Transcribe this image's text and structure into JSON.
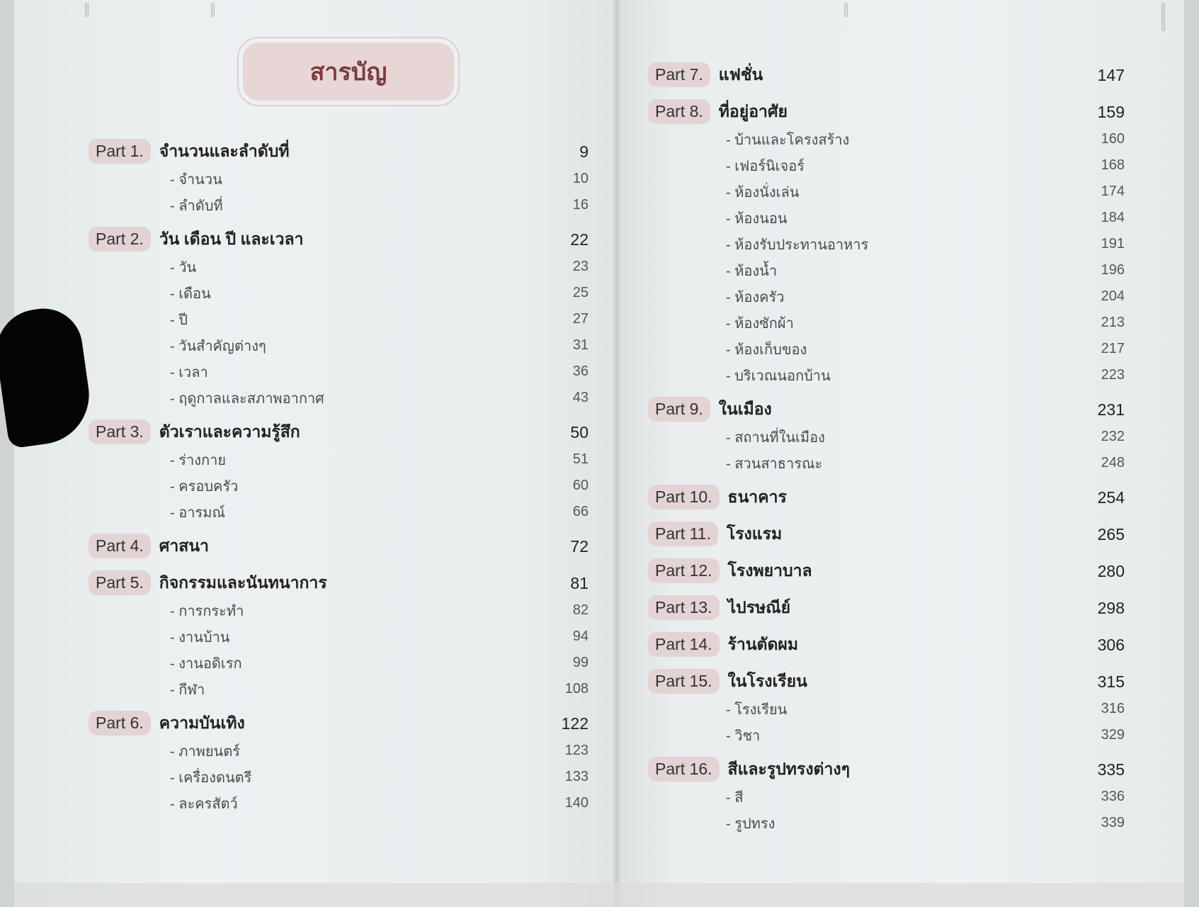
{
  "title": "สารบัญ",
  "colors": {
    "accent_pill": "#e3d3d4",
    "title_text": "#7b3a3e",
    "page_bg": "#edf1f2"
  },
  "left_toc": [
    {
      "label": "Part 1.",
      "title": "จำนวนและลำดับที่",
      "page": "9",
      "subs": [
        {
          "title": "จำนวน",
          "page": "10"
        },
        {
          "title": "ลำดับที่",
          "page": "16"
        }
      ]
    },
    {
      "label": "Part 2.",
      "title": "วัน เดือน ปี และเวลา",
      "page": "22",
      "subs": [
        {
          "title": "วัน",
          "page": "23"
        },
        {
          "title": "เดือน",
          "page": "25"
        },
        {
          "title": "ปี",
          "page": "27"
        },
        {
          "title": "วันสำคัญต่างๆ",
          "page": "31"
        },
        {
          "title": "เวลา",
          "page": "36"
        },
        {
          "title": "ฤดูกาลและสภาพอากาศ",
          "page": "43"
        }
      ]
    },
    {
      "label": "Part 3.",
      "title": "ตัวเราและความรู้สึก",
      "page": "50",
      "subs": [
        {
          "title": "ร่างกาย",
          "page": "51"
        },
        {
          "title": "ครอบครัว",
          "page": "60"
        },
        {
          "title": "อารมณ์",
          "page": "66"
        }
      ]
    },
    {
      "label": "Part 4.",
      "title": "ศาสนา",
      "page": "72",
      "subs": []
    },
    {
      "label": "Part 5.",
      "title": "กิจกรรมและนันทนาการ",
      "page": "81",
      "subs": [
        {
          "title": "การกระทำ",
          "page": "82"
        },
        {
          "title": "งานบ้าน",
          "page": "94"
        },
        {
          "title": "งานอดิเรก",
          "page": "99"
        },
        {
          "title": "กีฬา",
          "page": "108"
        }
      ]
    },
    {
      "label": "Part 6.",
      "title": "ความบันเทิง",
      "page": "122",
      "subs": [
        {
          "title": "ภาพยนตร์",
          "page": "123"
        },
        {
          "title": "เครื่องดนตรี",
          "page": "133"
        },
        {
          "title": "ละครสัตว์",
          "page": "140"
        }
      ]
    }
  ],
  "right_toc": [
    {
      "label": "Part 7.",
      "title": "แฟชั่น",
      "page": "147",
      "subs": []
    },
    {
      "label": "Part 8.",
      "title": "ที่อยู่อาศัย",
      "page": "159",
      "subs": [
        {
          "title": "บ้านและโครงสร้าง",
          "page": "160"
        },
        {
          "title": "เฟอร์นิเจอร์",
          "page": "168"
        },
        {
          "title": "ห้องนั่งเล่น",
          "page": "174"
        },
        {
          "title": "ห้องนอน",
          "page": "184"
        },
        {
          "title": "ห้องรับประทานอาหาร",
          "page": "191"
        },
        {
          "title": "ห้องน้ำ",
          "page": "196"
        },
        {
          "title": "ห้องครัว",
          "page": "204"
        },
        {
          "title": "ห้องซักผ้า",
          "page": "213"
        },
        {
          "title": "ห้องเก็บของ",
          "page": "217"
        },
        {
          "title": "บริเวณนอกบ้าน",
          "page": "223"
        }
      ]
    },
    {
      "label": "Part 9.",
      "title": "ในเมือง",
      "page": "231",
      "subs": [
        {
          "title": "สถานที่ในเมือง",
          "page": "232"
        },
        {
          "title": "สวนสาธารณะ",
          "page": "248"
        }
      ]
    },
    {
      "label": "Part 10.",
      "title": "ธนาคาร",
      "page": "254",
      "subs": []
    },
    {
      "label": "Part 11.",
      "title": "โรงแรม",
      "page": "265",
      "subs": []
    },
    {
      "label": "Part 12.",
      "title": "โรงพยาบาล",
      "page": "280",
      "subs": []
    },
    {
      "label": "Part 13.",
      "title": "ไปรษณีย์",
      "page": "298",
      "subs": []
    },
    {
      "label": "Part 14.",
      "title": "ร้านตัดผม",
      "page": "306",
      "subs": []
    },
    {
      "label": "Part 15.",
      "title": "ในโรงเรียน",
      "page": "315",
      "subs": [
        {
          "title": "โรงเรียน",
          "page": "316"
        },
        {
          "title": "วิชา",
          "page": "329"
        }
      ]
    },
    {
      "label": "Part 16.",
      "title": "สีและรูปทรงต่างๆ",
      "page": "335",
      "subs": [
        {
          "title": "สี",
          "page": "336"
        },
        {
          "title": "รูปทรง",
          "page": "339"
        }
      ]
    }
  ]
}
